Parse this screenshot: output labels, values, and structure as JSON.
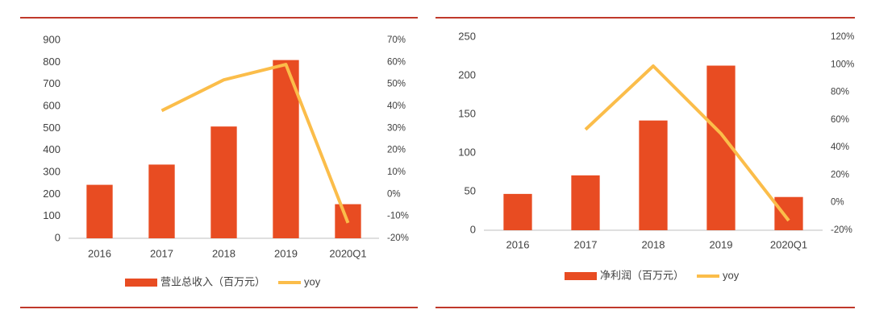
{
  "chart_data": [
    {
      "type": "bar",
      "categories": [
        "2016",
        "2017",
        "2018",
        "2019",
        "2020Q1"
      ],
      "series": [
        {
          "name": "营业总收入（百万元）",
          "color": "#e84c22",
          "values": [
            243,
            335,
            508,
            810,
            155
          ]
        },
        {
          "name": "yoy",
          "color": "#fbbd4a",
          "axis": "y2",
          "type": "line",
          "values": [
            null,
            38,
            52,
            59,
            -13
          ]
        }
      ],
      "ylim": [
        0,
        900
      ],
      "yticks": [
        0,
        100,
        200,
        300,
        400,
        500,
        600,
        700,
        800,
        900
      ],
      "y2lim": [
        -20,
        70
      ],
      "y2ticks": [
        {
          "value": -20,
          "label": "-20%"
        },
        {
          "value": -10,
          "label": "-10%"
        },
        {
          "value": 0,
          "label": "0%"
        },
        {
          "value": 10,
          "label": "10%"
        },
        {
          "value": 20,
          "label": "20%"
        },
        {
          "value": 30,
          "label": "30%"
        },
        {
          "value": 40,
          "label": "40%"
        },
        {
          "value": 50,
          "label": "50%"
        },
        {
          "value": 60,
          "label": "60%"
        },
        {
          "value": 70,
          "label": "70%"
        }
      ]
    },
    {
      "type": "bar",
      "categories": [
        "2016",
        "2017",
        "2018",
        "2019",
        "2020Q1"
      ],
      "series": [
        {
          "name": "净利润（百万元）",
          "color": "#e84c22",
          "values": [
            47,
            71,
            142,
            213,
            43
          ]
        },
        {
          "name": "yoy",
          "color": "#fbbd4a",
          "axis": "y2",
          "type": "line",
          "values": [
            null,
            53,
            99,
            50,
            -13
          ]
        }
      ],
      "ylim": [
        0,
        250
      ],
      "yticks": [
        0,
        50,
        100,
        150,
        200,
        250
      ],
      "y2lim": [
        -20,
        120
      ],
      "y2ticks": [
        {
          "value": -20,
          "label": "-20%"
        },
        {
          "value": 0,
          "label": "0%"
        },
        {
          "value": 20,
          "label": "20%"
        },
        {
          "value": 40,
          "label": "40%"
        },
        {
          "value": 60,
          "label": "60%"
        },
        {
          "value": 80,
          "label": "80%"
        },
        {
          "value": 100,
          "label": "100%"
        },
        {
          "value": 120,
          "label": "120%"
        }
      ]
    }
  ]
}
